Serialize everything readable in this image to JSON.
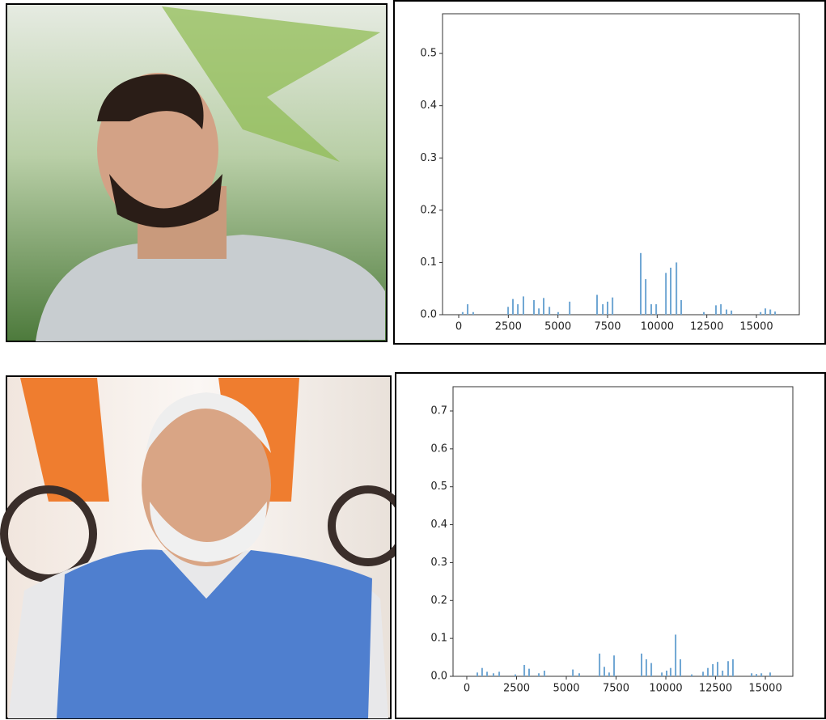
{
  "chart_data": [
    {
      "type": "bar",
      "color": "#6fa6d3",
      "x": [
        200,
        450,
        730,
        2490,
        2730,
        2980,
        3260,
        3790,
        4040,
        4280,
        4570,
        5010,
        5590,
        6970,
        7260,
        7500,
        7750,
        9170,
        9420,
        9700,
        9950,
        10440,
        10680,
        10970,
        11210,
        12350,
        12960,
        13210,
        13490,
        13740,
        15210,
        15450,
        15700,
        15940
      ],
      "values": [
        0.005,
        0.02,
        0.005,
        0.015,
        0.03,
        0.02,
        0.035,
        0.028,
        0.012,
        0.032,
        0.015,
        0.005,
        0.025,
        0.038,
        0.02,
        0.025,
        0.033,
        0.118,
        0.068,
        0.02,
        0.02,
        0.08,
        0.09,
        0.1,
        0.028,
        0.005,
        0.018,
        0.02,
        0.01,
        0.008,
        0.005,
        0.012,
        0.01,
        0.006
      ],
      "xlim": [
        -815,
        17160
      ],
      "ylim": [
        0,
        0.576
      ],
      "xticks": [
        0,
        2500,
        5000,
        7500,
        10000,
        12500,
        15000
      ],
      "yticks": [
        {
          "value": 0,
          "label": "0.0"
        },
        0.1,
        0.2,
        0.3,
        0.4,
        0.5
      ]
    },
    {
      "type": "bar",
      "color": "#6fa6d3",
      "x": [
        530,
        770,
        1020,
        1340,
        1630,
        2440,
        2890,
        3130,
        3620,
        3900,
        5330,
        5650,
        6670,
        6910,
        7150,
        7400,
        8780,
        9020,
        9270,
        9800,
        10040,
        10240,
        10490,
        10730,
        11300,
        11870,
        12110,
        12360,
        12600,
        12850,
        13130,
        13370,
        14310,
        14550,
        14800,
        15240
      ],
      "values": [
        0.01,
        0.022,
        0.012,
        0.008,
        0.012,
        0.005,
        0.03,
        0.02,
        0.008,
        0.015,
        0.018,
        0.008,
        0.06,
        0.025,
        0.01,
        0.055,
        0.06,
        0.045,
        0.035,
        0.01,
        0.015,
        0.022,
        0.11,
        0.045,
        0.005,
        0.012,
        0.022,
        0.032,
        0.038,
        0.015,
        0.04,
        0.045,
        0.008,
        0.006,
        0.008,
        0.01
      ],
      "xlim": [
        -690,
        16380
      ],
      "ylim": [
        0,
        0.764
      ],
      "xticks": [
        0,
        2500,
        5000,
        7500,
        10000,
        12500,
        15000
      ],
      "yticks": [
        {
          "value": 0,
          "label": "0.0"
        },
        0.1,
        0.2,
        0.3,
        0.4,
        0.5,
        0.6,
        0.7
      ]
    }
  ]
}
